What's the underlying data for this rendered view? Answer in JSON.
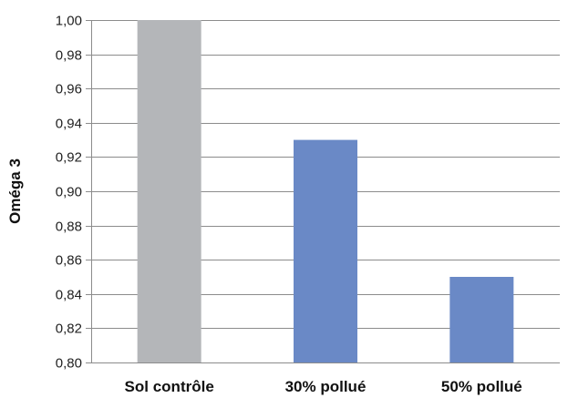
{
  "chart_data": {
    "type": "bar",
    "title": "",
    "xlabel": "",
    "ylabel": "Oméga 3",
    "categories": [
      "Sol contrôle",
      "30% pollué",
      "50% pollué"
    ],
    "values": [
      1.0,
      0.93,
      0.85
    ],
    "colors": [
      "#b4b6b9",
      "#6a89c6",
      "#6a89c6"
    ],
    "ylim": [
      0.8,
      1.0
    ],
    "yticks": [
      0.8,
      0.82,
      0.84,
      0.86,
      0.88,
      0.9,
      0.92,
      0.94,
      0.96,
      0.98,
      1.0
    ],
    "ytick_labels": [
      "0,80",
      "0,82",
      "0,84",
      "0,86",
      "0,88",
      "0,90",
      "0,92",
      "0,94",
      "0,96",
      "0,98",
      "1,00"
    ],
    "grid": true,
    "gridline_color": "#8c8c8c",
    "legend": "none"
  }
}
